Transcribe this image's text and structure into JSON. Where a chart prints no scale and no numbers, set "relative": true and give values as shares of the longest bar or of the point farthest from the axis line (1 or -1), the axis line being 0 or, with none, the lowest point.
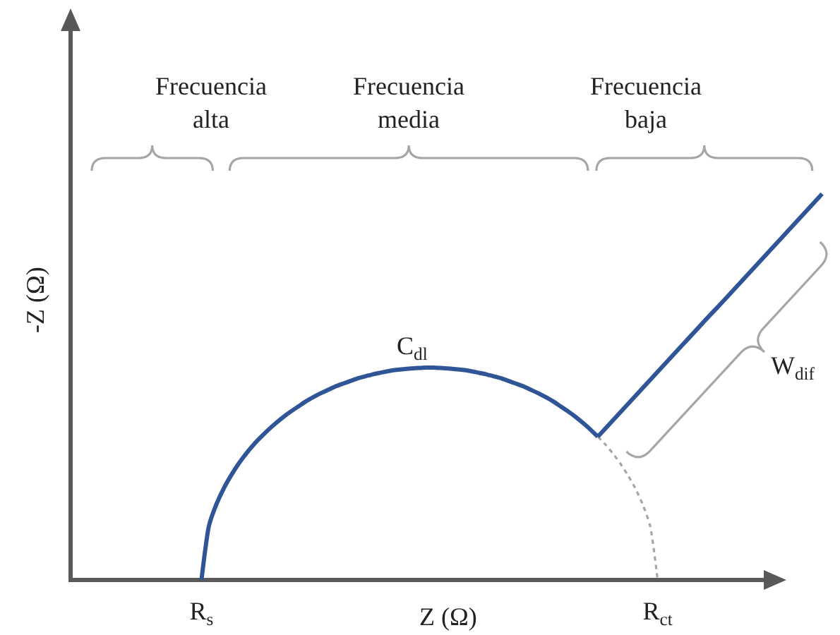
{
  "chart_data": {
    "type": "line",
    "relative": true,
    "xlabel": "Z (Ω)",
    "ylabel": "-Z (Ω)",
    "tick_labels": "x",
    "categories": [
      null,
      null,
      null,
      null,
      null,
      null,
      null,
      null,
      null,
      null,
      null,
      null,
      null,
      null,
      null,
      null,
      null,
      "R$_{s}$",
      null,
      null,
      null,
      null,
      null,
      null,
      null,
      null,
      null,
      null,
      null,
      null,
      null,
      null,
      null,
      null,
      null,
      null,
      null,
      null,
      null,
      null,
      null,
      null,
      null,
      null,
      null,
      null,
      null,
      null,
      null,
      null,
      null,
      null,
      null,
      null,
      null,
      null,
      null,
      null,
      null,
      null,
      null,
      null,
      null,
      null,
      null,
      null,
      null,
      null,
      null,
      null,
      null,
      null,
      null,
      null,
      null,
      null,
      null,
      null,
      "R$_{ct}$",
      null,
      null,
      null,
      null,
      null,
      null,
      null,
      null,
      null,
      null,
      null,
      null,
      null,
      null,
      null,
      null,
      null,
      null,
      null,
      null,
      null,
      null
    ],
    "series": [
      {
        "color": "#2f5597",
        "line_style": "solid",
        "values": [
          null,
          null,
          null,
          null,
          null,
          null,
          null,
          null,
          null,
          null,
          null,
          null,
          null,
          null,
          null,
          null,
          null,
          0,
          0.14,
          0.196,
          0.238,
          0.272,
          0.302,
          0.328,
          0.351,
          0.371,
          0.39,
          0.407,
          0.423,
          0.437,
          0.45,
          0.463,
          0.474,
          0.484,
          0.493,
          0.502,
          0.509,
          0.516,
          0.523,
          0.528,
          0.533,
          0.537,
          0.541,
          0.544,
          0.546,
          0.548,
          0.549,
          0.55,
          0.55,
          0.549,
          0.548,
          0.546,
          0.544,
          0.541,
          0.537,
          0.533,
          0.528,
          0.523,
          0.516,
          0.509,
          0.502,
          0.493,
          0.484,
          0.474,
          0.463,
          0.45,
          0.437,
          0.423,
          0.407,
          0.39,
          0.371,
          null,
          null,
          null,
          null,
          null,
          null,
          null,
          null,
          null,
          null,
          null,
          null,
          null,
          null,
          null,
          null,
          null,
          null,
          null,
          null,
          null,
          null,
          null,
          null,
          null,
          null,
          null,
          null,
          null,
          null
        ]
      },
      {
        "color": "#a6a6a6",
        "line_style": "dotted",
        "values": [
          null,
          null,
          null,
          null,
          null,
          null,
          null,
          null,
          null,
          null,
          null,
          null,
          null,
          null,
          null,
          null,
          null,
          null,
          null,
          null,
          null,
          null,
          null,
          null,
          null,
          null,
          null,
          null,
          null,
          null,
          null,
          null,
          null,
          null,
          null,
          null,
          null,
          null,
          null,
          null,
          null,
          null,
          null,
          null,
          null,
          null,
          null,
          null,
          null,
          null,
          null,
          null,
          null,
          null,
          null,
          null,
          null,
          null,
          null,
          null,
          null,
          null,
          null,
          null,
          null,
          null,
          null,
          null,
          null,
          null,
          0.371,
          0.351,
          0.328,
          0.302,
          0.272,
          0.238,
          0.196,
          0.14,
          0,
          null,
          null,
          null,
          null,
          null,
          null,
          null,
          null,
          null,
          null,
          null,
          null,
          null,
          null,
          null,
          null,
          null,
          null,
          null,
          null,
          null,
          null
        ]
      },
      {
        "color": "#2f5597",
        "line_style": "solid",
        "values": [
          null,
          null,
          null,
          null,
          null,
          null,
          null,
          null,
          null,
          null,
          null,
          null,
          null,
          null,
          null,
          null,
          null,
          null,
          null,
          null,
          null,
          null,
          null,
          null,
          null,
          null,
          null,
          null,
          null,
          null,
          null,
          null,
          null,
          null,
          null,
          null,
          null,
          null,
          null,
          null,
          null,
          null,
          null,
          null,
          null,
          null,
          null,
          null,
          null,
          null,
          null,
          null,
          null,
          null,
          null,
          null,
          null,
          null,
          null,
          null,
          null,
          null,
          null,
          null,
          null,
          null,
          null,
          null,
          null,
          null,
          0.371,
          0.392,
          0.413,
          0.434,
          0.455,
          0.476,
          0.497,
          0.518,
          0.539,
          0.56,
          0.581,
          0.602,
          0.623,
          0.644,
          0.665,
          0.686,
          0.706,
          0.727,
          0.748,
          0.769,
          0.79,
          0.811,
          0.832,
          0.853,
          0.874,
          0.895,
          0.916,
          0.937,
          0.958,
          0.979,
          1
        ]
      }
    ],
    "annotations": [
      "Frecuencia alta",
      "Frecuencia media",
      "Frecuencia baja",
      "C$_{dl}$",
      "W$_{dif}$"
    ]
  }
}
